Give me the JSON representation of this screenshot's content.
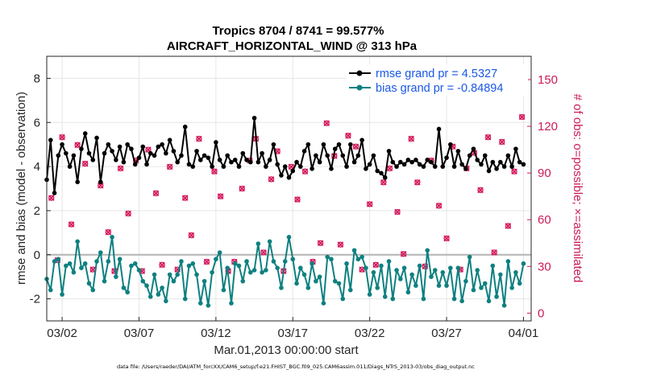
{
  "chart_data": {
    "type": "line",
    "title": "Tropics 8704 / 8741 = 99.577%",
    "subtitle": "AIRCRAFT_HORIZONTAL_WIND @ 313 hPa",
    "xlabel": "Mar.01,2013 00:00:00 start",
    "ylabel": "rmse and bias (model - observation)",
    "ylabel_right": "# of obs: o=possible; ×=assimilated",
    "xlim": [
      0,
      31.5
    ],
    "ylim": [
      -3,
      9
    ],
    "ylim_right": [
      -5,
      165
    ],
    "x_ticks": [
      1,
      6,
      11,
      16,
      21,
      26,
      31
    ],
    "x_tick_labels": [
      "03/02",
      "03/07",
      "03/12",
      "03/17",
      "03/22",
      "03/27",
      "04/01"
    ],
    "y_ticks": [
      -2,
      0,
      2,
      4,
      6,
      8
    ],
    "y_ticks_right": [
      0,
      30,
      60,
      90,
      120,
      150
    ],
    "grid": true,
    "zero_line": true,
    "legend_position": "top-right",
    "colors": {
      "rmse": "#000000",
      "bias": "#0f8080",
      "obs": "#d4145a",
      "legend_text": "#1a57e6",
      "right_axis": "#cc1a5a"
    },
    "series": [
      {
        "name": "rmse grand pr = 4.5327",
        "axis": "left",
        "x": [
          0.0,
          0.25,
          0.5,
          0.75,
          1.0,
          1.25,
          1.5,
          1.75,
          2.0,
          2.25,
          2.5,
          2.75,
          3.0,
          3.25,
          3.5,
          3.75,
          4.0,
          4.25,
          4.5,
          4.75,
          5.0,
          5.25,
          5.5,
          5.75,
          6.0,
          6.25,
          6.5,
          6.75,
          7.0,
          7.25,
          7.5,
          7.75,
          8.0,
          8.25,
          8.5,
          8.75,
          9.0,
          9.25,
          9.5,
          9.75,
          10.0,
          10.25,
          10.5,
          10.75,
          11.0,
          11.25,
          11.5,
          11.75,
          12.0,
          12.25,
          12.5,
          12.75,
          13.0,
          13.25,
          13.5,
          13.75,
          14.0,
          14.25,
          14.5,
          14.75,
          15.0,
          15.25,
          15.5,
          15.75,
          16.0,
          16.25,
          16.5,
          16.75,
          17.0,
          17.25,
          17.5,
          17.75,
          18.0,
          18.25,
          18.5,
          18.75,
          19.0,
          19.25,
          19.5,
          19.75,
          20.0,
          20.25,
          20.5,
          20.75,
          21.0,
          21.25,
          21.5,
          21.75,
          22.0,
          22.25,
          22.5,
          22.75,
          23.0,
          23.25,
          23.5,
          23.75,
          24.0,
          24.25,
          24.5,
          24.75,
          25.0,
          25.25,
          25.5,
          25.75,
          26.0,
          26.25,
          26.5,
          26.75,
          27.0,
          27.25,
          27.5,
          27.75,
          28.0,
          28.25,
          28.5,
          28.75,
          29.0,
          29.25,
          29.5,
          29.75,
          30.0,
          30.25,
          30.5,
          30.75,
          31.0
        ],
        "values": [
          3.4,
          5.2,
          2.8,
          4.5,
          5.0,
          4.6,
          4.0,
          4.5,
          3.3,
          4.8,
          5.5,
          4.6,
          4.3,
          5.3,
          3.3,
          4.6,
          5.0,
          4.7,
          4.3,
          4.9,
          4.2,
          5.0,
          4.8,
          4.1,
          4.4,
          4.9,
          4.1,
          4.6,
          4.5,
          4.9,
          5.0,
          4.6,
          5.2,
          4.7,
          4.2,
          4.5,
          5.8,
          4.1,
          4.0,
          4.7,
          4.3,
          4.5,
          4.4,
          4.0,
          5.1,
          4.3,
          4.0,
          4.5,
          4.2,
          4.3,
          4.0,
          4.6,
          4.3,
          4.2,
          6.2,
          4.2,
          4.6,
          4.0,
          4.3,
          5.0,
          4.1,
          3.6,
          4.0,
          3.5,
          3.8,
          4.2,
          4.0,
          4.7,
          5.0,
          3.9,
          4.5,
          4.2,
          5.0,
          4.5,
          3.9,
          4.8,
          5.0,
          4.5,
          4.0,
          5.0,
          4.2,
          4.5,
          5.2,
          3.9,
          4.1,
          4.5,
          3.8,
          3.7,
          3.5,
          4.7,
          4.2,
          4.0,
          4.2,
          4.1,
          4.3,
          4.2,
          4.3,
          4.1,
          4.0,
          4.3,
          4.2,
          4.0,
          5.7,
          4.0,
          4.4,
          5.0,
          4.0,
          4.7,
          4.1,
          3.9,
          4.5,
          4.8,
          4.3,
          4.1,
          4.5,
          3.8,
          4.2,
          3.9,
          4.2,
          4.0,
          4.5,
          4.0,
          4.8,
          4.2,
          4.1
        ],
        "color": "#000000"
      },
      {
        "name": "bias grand pr = -0.84894",
        "axis": "left",
        "x": [
          0.0,
          0.25,
          0.5,
          0.75,
          1.0,
          1.25,
          1.5,
          1.75,
          2.0,
          2.25,
          2.5,
          2.75,
          3.0,
          3.25,
          3.5,
          3.75,
          4.0,
          4.25,
          4.5,
          4.75,
          5.0,
          5.25,
          5.5,
          5.75,
          6.0,
          6.25,
          6.5,
          6.75,
          7.0,
          7.25,
          7.5,
          7.75,
          8.0,
          8.25,
          8.5,
          8.75,
          9.0,
          9.25,
          9.5,
          9.75,
          10.0,
          10.25,
          10.5,
          10.75,
          11.0,
          11.25,
          11.5,
          11.75,
          12.0,
          12.25,
          12.5,
          12.75,
          13.0,
          13.25,
          13.5,
          13.75,
          14.0,
          14.25,
          14.5,
          14.75,
          15.0,
          15.25,
          15.5,
          15.75,
          16.0,
          16.25,
          16.5,
          16.75,
          17.0,
          17.25,
          17.5,
          17.75,
          18.0,
          18.25,
          18.5,
          18.75,
          19.0,
          19.25,
          19.5,
          19.75,
          20.0,
          20.25,
          20.5,
          20.75,
          21.0,
          21.25,
          21.5,
          21.75,
          22.0,
          22.25,
          22.5,
          22.75,
          23.0,
          23.25,
          23.5,
          23.75,
          24.0,
          24.25,
          24.5,
          24.75,
          25.0,
          25.25,
          25.5,
          25.75,
          26.0,
          26.25,
          26.5,
          26.75,
          27.0,
          27.25,
          27.5,
          27.75,
          28.0,
          28.25,
          28.5,
          28.75,
          29.0,
          29.25,
          29.5,
          29.75,
          30.0,
          30.25,
          30.5,
          30.75,
          31.0
        ],
        "values": [
          -1.1,
          -1.6,
          -0.3,
          -0.2,
          -1.8,
          -0.5,
          -0.4,
          -0.8,
          0.6,
          -0.6,
          -0.4,
          -1.3,
          -1.6,
          -0.3,
          0.1,
          -1.2,
          -0.3,
          0.8,
          -1.0,
          -0.2,
          -1.5,
          -1.7,
          -0.5,
          -0.4,
          -0.7,
          -1.2,
          -1.4,
          -1.9,
          -0.9,
          -1.8,
          -1.5,
          -2.1,
          -0.9,
          -1.2,
          -0.9,
          -0.3,
          -2.0,
          -0.5,
          -0.4,
          -0.9,
          -2.2,
          -1.2,
          -2.3,
          -0.8,
          -0.2,
          0.1,
          -1.6,
          -0.6,
          -2.2,
          -0.4,
          -0.5,
          -1.2,
          -0.3,
          -0.8,
          -0.7,
          0.5,
          -0.8,
          -0.7,
          0.6,
          -0.3,
          -0.6,
          -1.5,
          -0.3,
          0.8,
          -0.2,
          -1.3,
          -0.6,
          -0.9,
          -1.5,
          -0.4,
          -1.2,
          -1.0,
          -2.2,
          -0.1,
          -0.2,
          -1.2,
          -1.3,
          -2.0,
          -0.4,
          -1.6,
          0.2,
          -0.2,
          -0.1,
          -0.6,
          -1.8,
          -0.8,
          -1.5,
          -0.5,
          -1.9,
          -0.3,
          -2.0,
          -0.7,
          -1.1,
          -0.6,
          -1.7,
          -0.9,
          -1.4,
          -0.5,
          -2.0,
          0.2,
          -1.0,
          -0.7,
          -1.4,
          -0.8,
          -1.4,
          -0.6,
          -2.0,
          -0.6,
          -2.1,
          -1.2,
          -0.1,
          -1.6,
          -0.7,
          -1.5,
          -1.3,
          -2.1,
          -0.5,
          -1.9,
          -0.9,
          -2.3,
          -0.3,
          -1.5,
          -0.8,
          -1.3,
          -0.4
        ],
        "color": "#0f8080"
      },
      {
        "name": "obs possible",
        "axis": "right",
        "marker": "o",
        "x": [
          0.3,
          0.7,
          1.0,
          1.6,
          2.0,
          2.5,
          3.0,
          3.5,
          4.0,
          4.4,
          4.8,
          5.3,
          5.8,
          6.2,
          6.6,
          7.1,
          7.5,
          8.0,
          8.5,
          9.0,
          9.4,
          9.9,
          10.4,
          10.9,
          11.3,
          11.8,
          12.2,
          12.7,
          13.2,
          13.6,
          14.1,
          14.6,
          15.0,
          15.4,
          15.9,
          16.3,
          16.8,
          17.3,
          17.8,
          18.2,
          18.7,
          19.1,
          19.6,
          20.1,
          20.5,
          21.0,
          21.4,
          21.9,
          22.3,
          22.8,
          23.2,
          23.7,
          24.1,
          24.6,
          25.0,
          25.5,
          26.0,
          26.4,
          26.9,
          27.3,
          27.8,
          28.2,
          28.7,
          29.1,
          29.6,
          30.0,
          30.4,
          30.9
        ],
        "values": [
          74,
          34,
          113,
          57,
          108,
          96,
          28,
          82,
          52,
          27,
          93,
          64,
          98,
          27,
          105,
          77,
          31,
          94,
          28,
          74,
          50,
          112,
          33,
          91,
          75,
          27,
          33,
          80,
          98,
          112,
          39,
          86,
          104,
          27,
          94,
          73,
          91,
          33,
          45,
          122,
          101,
          44,
          114,
          107,
          28,
          70,
          31,
          84,
          93,
          65,
          38,
          112,
          84,
          30,
          98,
          69,
          48,
          107,
          28,
          93,
          103,
          79,
          113,
          39,
          110,
          56,
          91,
          126
        ],
        "color": "#d4145a"
      },
      {
        "name": "obs assimilated",
        "axis": "right",
        "marker": "x",
        "x": [
          0.3,
          0.7,
          1.0,
          1.6,
          2.0,
          2.5,
          3.0,
          3.5,
          4.0,
          4.4,
          4.8,
          5.3,
          5.8,
          6.2,
          6.6,
          7.1,
          7.5,
          8.0,
          8.5,
          9.0,
          9.4,
          9.9,
          10.4,
          10.9,
          11.3,
          11.8,
          12.2,
          12.7,
          13.2,
          13.6,
          14.1,
          14.6,
          15.0,
          15.4,
          15.9,
          16.3,
          16.8,
          17.3,
          17.8,
          18.2,
          18.7,
          19.1,
          19.6,
          20.1,
          20.5,
          21.0,
          21.4,
          21.9,
          22.3,
          22.8,
          23.2,
          23.7,
          24.1,
          24.6,
          25.0,
          25.5,
          26.0,
          26.4,
          26.9,
          27.3,
          27.8,
          28.2,
          28.7,
          29.1,
          29.6,
          30.0,
          30.4,
          30.9
        ],
        "values": [
          74,
          34,
          113,
          57,
          108,
          96,
          28,
          82,
          52,
          27,
          93,
          64,
          98,
          27,
          105,
          77,
          31,
          94,
          28,
          74,
          50,
          112,
          33,
          91,
          75,
          27,
          33,
          80,
          98,
          112,
          39,
          86,
          104,
          27,
          94,
          73,
          91,
          33,
          45,
          122,
          101,
          44,
          114,
          107,
          28,
          70,
          31,
          84,
          93,
          65,
          38,
          112,
          84,
          30,
          98,
          69,
          48,
          107,
          28,
          93,
          103,
          79,
          113,
          39,
          110,
          56,
          91,
          126
        ],
        "color": "#d4145a"
      }
    ],
    "legend": [
      {
        "label": "rmse grand pr = 4.5327",
        "series": 0
      },
      {
        "label": "bias grand pr = -0.84894",
        "series": 1
      }
    ],
    "footer": "data file: /Users/raeder/DAI/ATM_forcXX/CAM6_setup/f.e21.FHIST_BGC.f09_025.CAM6assim.011/Diags_NTrS_2013-03/obs_diag_output.nc"
  }
}
